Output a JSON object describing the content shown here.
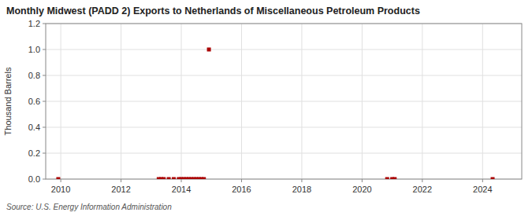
{
  "chart_data": {
    "type": "scatter",
    "title": "Monthly Midwest (PADD 2) Exports to Netherlands of Miscellaneous Petroleum Products",
    "y_label": "Thousand Barrels",
    "annotations": [
      "Source: U.S. Energy Information Administration"
    ],
    "x": [
      2009.917,
      2013.25,
      2013.333,
      2013.417,
      2013.583,
      2013.75,
      2013.917,
      2014.0,
      2014.083,
      2014.167,
      2014.25,
      2014.333,
      2014.417,
      2014.5,
      2014.583,
      2014.667,
      2014.75,
      2014.917,
      2020.833,
      2021.0,
      2021.083,
      2024.333
    ],
    "values": [
      0.0,
      0.0,
      0.0,
      0.0,
      0.0,
      0.0,
      0.0,
      0.0,
      0.0,
      0.0,
      0.0,
      0.0,
      0.0,
      0.0,
      0.0,
      0.0,
      0.0,
      1.0,
      0.0,
      0.0,
      0.0,
      0.0
    ],
    "color": "#aa0000",
    "marker": "square",
    "xlim": [
      2009.5,
      2025.3
    ],
    "ylim": [
      0.0,
      1.2
    ],
    "xticks": [
      2010,
      2012,
      2014,
      2016,
      2018,
      2020,
      2022,
      2024
    ],
    "yticks": [
      {
        "value": 0.0,
        "label": "0.0"
      },
      {
        "value": 0.2,
        "label": "0.2"
      },
      {
        "value": 0.4,
        "label": "0.4"
      },
      {
        "value": 0.6,
        "label": "0.6"
      },
      {
        "value": 0.8,
        "label": "0.8"
      },
      {
        "value": 1.0,
        "label": "1.0"
      },
      {
        "value": 1.2,
        "label": "1.2"
      }
    ],
    "grid": true
  }
}
